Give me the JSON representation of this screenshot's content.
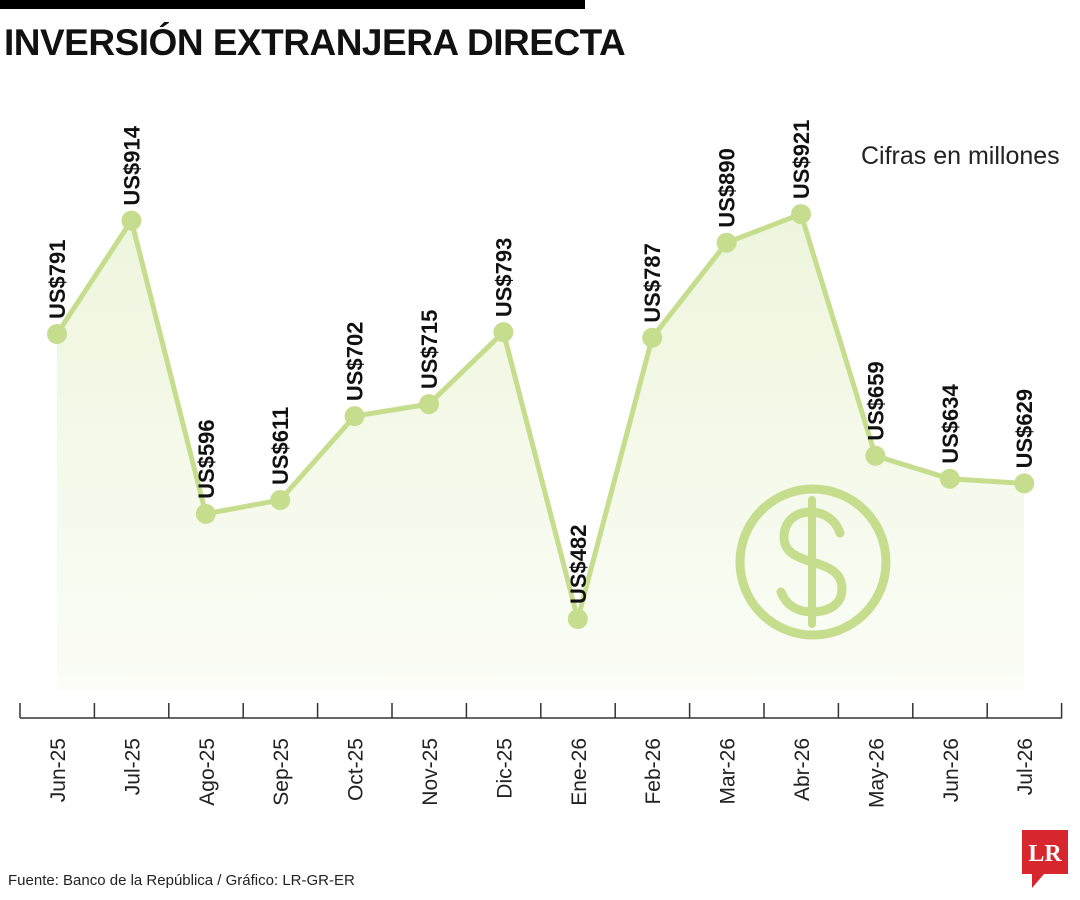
{
  "header": {
    "title": "INVERSIÓN EXTRANJERA DIRECTA",
    "units": "Cifras en millones"
  },
  "footer": {
    "source": "Fuente: Banco de la República / Gráfico: LR-GR-ER",
    "logo_text": "LR"
  },
  "colors": {
    "line": "#c6dd8e",
    "fill_top": "#eef5dd",
    "fill_bottom": "#fbfdf6",
    "accent": "#d7262e"
  },
  "icons": [
    "dollar-coin-icon",
    "lr-logo-icon"
  ],
  "chart_data": {
    "type": "line",
    "categories": [
      "Jun-25",
      "Jul-25",
      "Ago-25",
      "Sep-25",
      "Oct-25",
      "Nov-25",
      "Dic-25",
      "Ene-26",
      "Feb-26",
      "Mar-26",
      "Abr-26",
      "May-26",
      "Jun-26",
      "Jul-26"
    ],
    "values": [
      791,
      914,
      596,
      611,
      702,
      715,
      793,
      482,
      787,
      890,
      921,
      659,
      634,
      629
    ],
    "data_labels": [
      "US$791",
      "US$914",
      "US$596",
      "US$611",
      "US$702",
      "US$715",
      "US$793",
      "US$482",
      "US$787",
      "US$890",
      "US$921",
      "US$659",
      "US$634",
      "US$629"
    ],
    "title": "INVERSIÓN EXTRANJERA DIRECTA",
    "xlabel": "",
    "ylabel": "",
    "grid": false,
    "area_fill": true
  }
}
